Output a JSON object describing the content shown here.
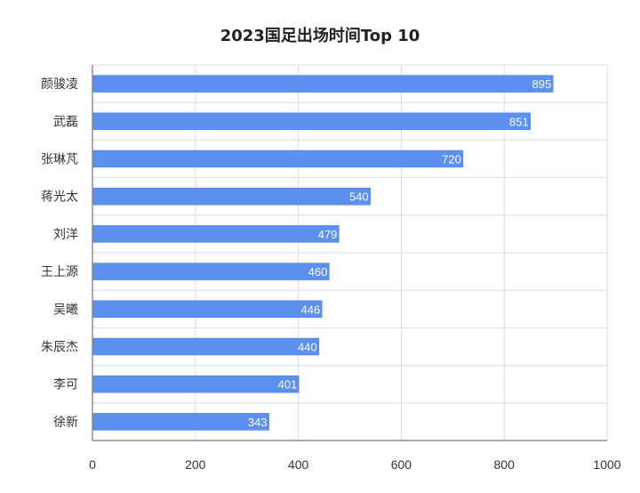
{
  "chart_data": {
    "type": "bar",
    "orientation": "horizontal",
    "title": "2023国足出场时间Top 10",
    "categories": [
      "颜骏凌",
      "武磊",
      "张琳芃",
      "蒋光太",
      "刘洋",
      "王上源",
      "吴曦",
      "朱辰杰",
      "李可",
      "徐新"
    ],
    "values": [
      895,
      851,
      720,
      540,
      479,
      460,
      446,
      440,
      401,
      343
    ],
    "xlim": [
      0,
      1000
    ],
    "xticks": [
      "0",
      "200",
      "400",
      "600",
      "800",
      "1000"
    ],
    "xlabel": "",
    "ylabel": "",
    "grid": true,
    "data_labels": true,
    "bar_color": "#5b8ff0"
  }
}
